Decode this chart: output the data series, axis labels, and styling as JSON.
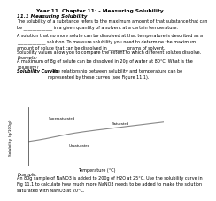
{
  "title": "Year 11  Chapter 11: - Measuring Solubility",
  "section_title": "11.1 Measuring Solubility",
  "para1": "The solubility of a substance refers to the maximum amount of that substance that can\nbe _____________ in a given quantity of a solvent at a certain temperature.",
  "para2": "A solution that no more solute can be dissolved at that temperature is described as a\n_____________ solution. To measure solubility you need to determine the maximum\namount of solute that can be dissolved in ________ grams of solvent.",
  "para3": "Solubility values allow you to compare the extent to which different solutes dissolve.",
  "example1_label": "Example:",
  "example1_text": "A maximum of 8g of solute can be dissolved in 20g of water at 80°C. What is the\nsolubility?",
  "bold_section": "Solubility Curves",
  "bold_section_text": " - The relationship between solubility and temperature can be\nrepresented by these curves (see Figure 11.1).",
  "ylabel": "Solubility (g/100g)",
  "xlabel": "Temperature (°C)",
  "label_supersaturated": "Supersaturated",
  "label_saturated": "Saturated",
  "label_unsaturated": "Unsaturated",
  "example2_label": "Example:",
  "example2_text": "An 80g sample of NaNO3 is added to 200g of H2O at 25°C. Use the solubility curve in\nFig 11.1 to calculate how much more NaNO3 needs to be added to make the solution\nsaturated with NaNO3 at 20°C.",
  "bg_color": "#ffffff",
  "text_color": "#000000",
  "curve_color": "#888888"
}
